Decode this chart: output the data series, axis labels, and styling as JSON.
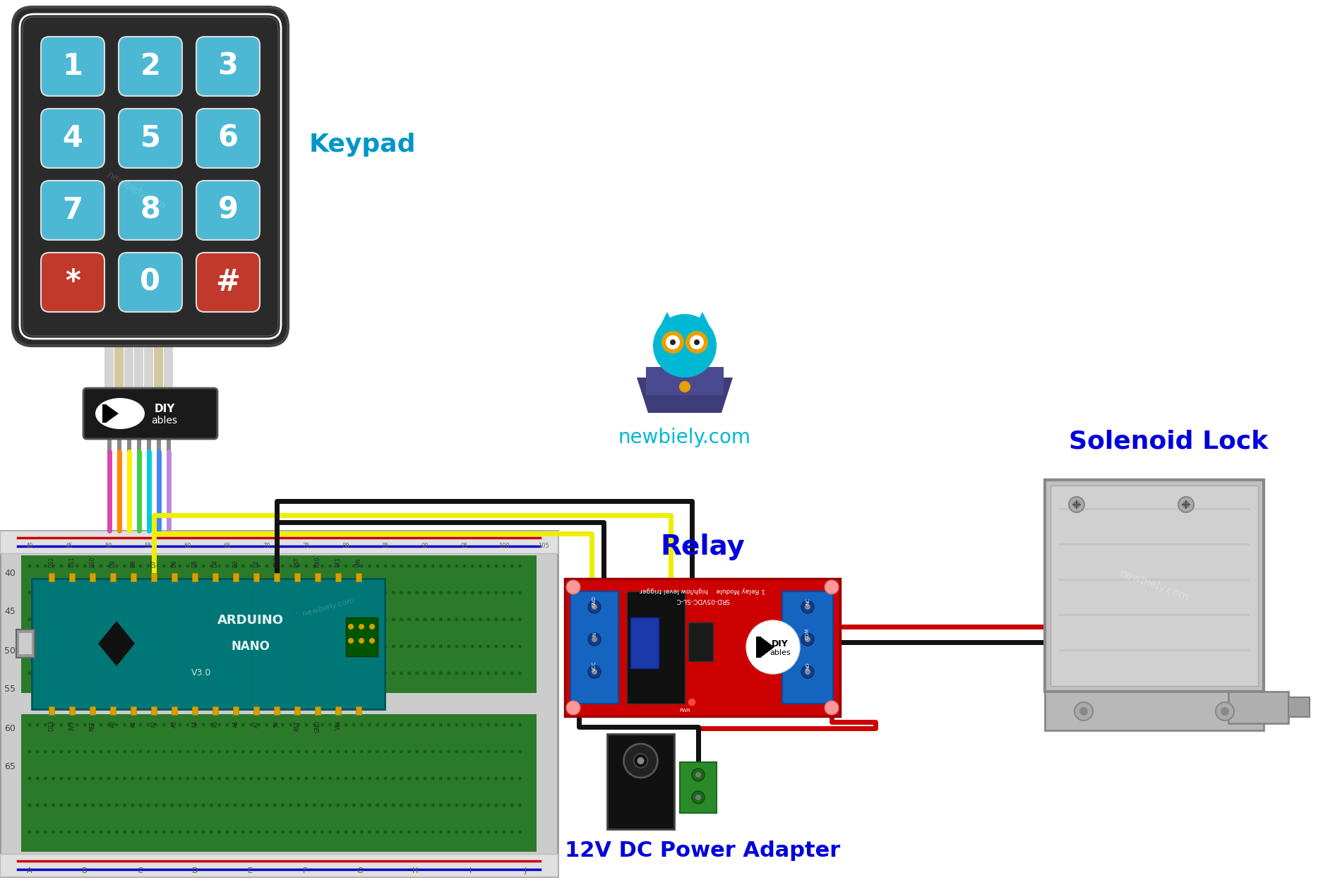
{
  "bg_color": "#ffffff",
  "keypad_label": "Keypad",
  "relay_label": "Relay",
  "solenoid_label": "Solenoid Lock",
  "power_label": "12V DC Power Adapter",
  "newbiely_text": "newbiely.com",
  "keypad_body_color": "#2a2a2a",
  "keypad_button_blue": "#4db8d4",
  "keypad_button_red": "#c0392b",
  "keypad_buttons": [
    "1",
    "2",
    "3",
    "4",
    "5",
    "6",
    "7",
    "8",
    "9",
    "*",
    "0",
    "#"
  ],
  "label_color_keypad": "#0096c8",
  "label_color_relay": "#0000dd",
  "label_color_solenoid": "#0000dd",
  "label_color_power": "#0000dd",
  "relay_body_color": "#cc0000",
  "relay_border_color": "#990000"
}
